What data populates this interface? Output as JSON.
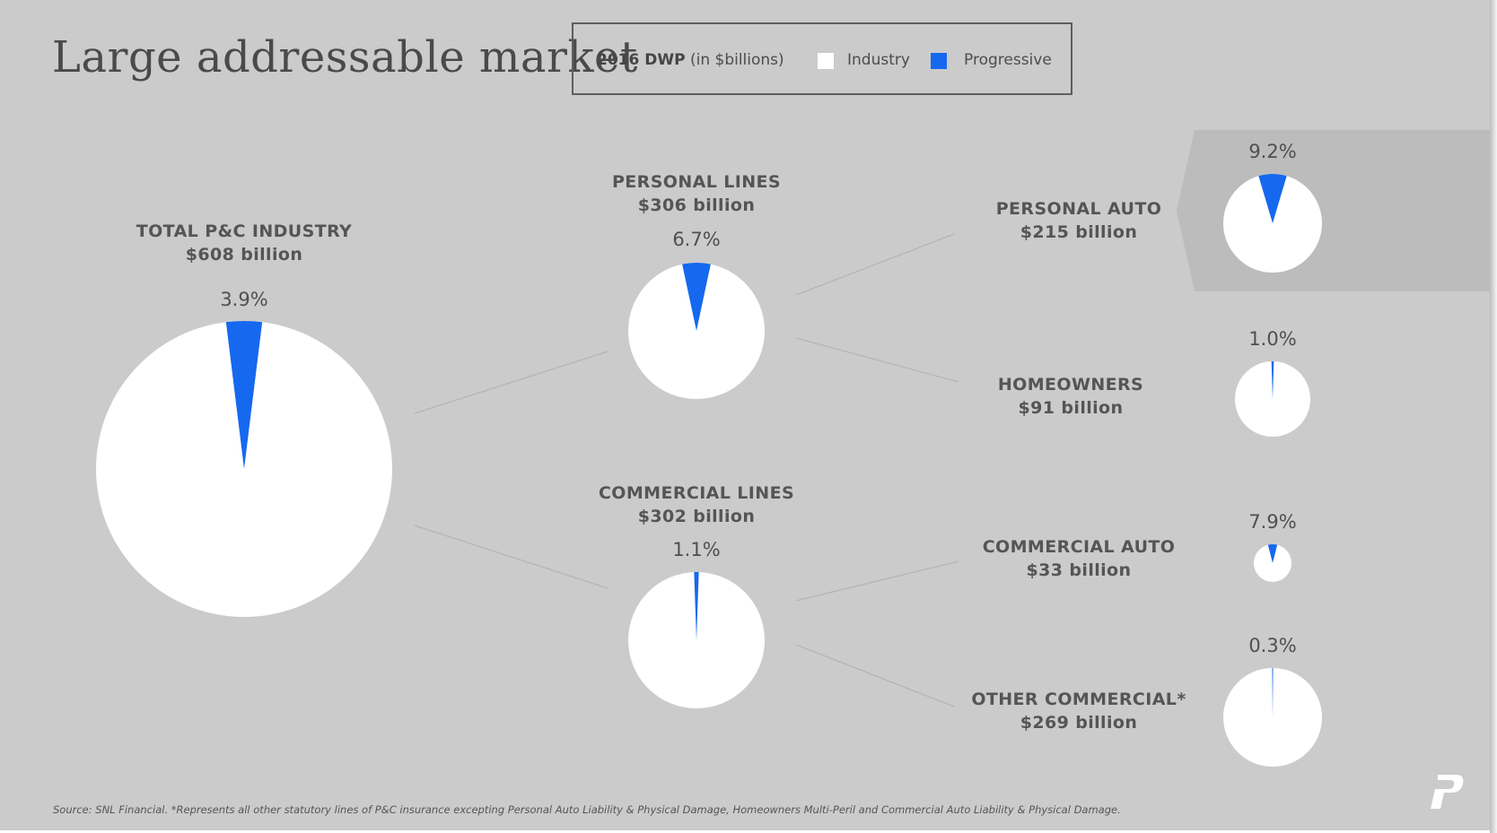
{
  "title": "Large addressable market",
  "legend": {
    "title_bold": "2016 DWP",
    "title_rest": "(in $billions)",
    "industry_label": "Industry",
    "progressive_label": "Progressive"
  },
  "colors": {
    "industry": "#ffffff",
    "progressive": "#1668ee",
    "background": "#cbcbcb",
    "highlight": "#bcbcbc",
    "text": "#555555"
  },
  "chart_data": {
    "type": "pie",
    "unit": "$ billions",
    "series_names": [
      "Industry",
      "Progressive"
    ],
    "pies": [
      {
        "id": "total",
        "label": "TOTAL P&C INDUSTRY",
        "value_text": "$608 billion",
        "value": 608,
        "progressive_share_text": "3.9%",
        "progressive_share": 3.9
      },
      {
        "id": "personal",
        "label": "PERSONAL LINES",
        "value_text": "$306 billion",
        "value": 306,
        "progressive_share_text": "6.7%",
        "progressive_share": 6.7
      },
      {
        "id": "commercial",
        "label": "COMMERCIAL LINES",
        "value_text": "$302 billion",
        "value": 302,
        "progressive_share_text": "1.1%",
        "progressive_share": 1.1
      },
      {
        "id": "personal_auto",
        "label": "PERSONAL AUTO",
        "value_text": "$215 billion",
        "value": 215,
        "progressive_share_text": "9.2%",
        "progressive_share": 9.2,
        "highlighted": true
      },
      {
        "id": "homeowners",
        "label": "HOMEOWNERS",
        "value_text": "$91 billion",
        "value": 91,
        "progressive_share_text": "1.0%",
        "progressive_share": 1.0
      },
      {
        "id": "commercial_auto",
        "label": "COMMERCIAL AUTO",
        "value_text": "$33 billion",
        "value": 33,
        "progressive_share_text": "7.9%",
        "progressive_share": 7.9
      },
      {
        "id": "other_commercial",
        "label": "OTHER COMMERCIAL*",
        "value_text": "$269 billion",
        "value": 269,
        "progressive_share_text": "0.3%",
        "progressive_share": 0.3
      }
    ],
    "hierarchy": [
      {
        "parent": "total",
        "child": "personal"
      },
      {
        "parent": "total",
        "child": "commercial"
      },
      {
        "parent": "personal",
        "child": "personal_auto"
      },
      {
        "parent": "personal",
        "child": "homeowners"
      },
      {
        "parent": "commercial",
        "child": "commercial_auto"
      },
      {
        "parent": "commercial",
        "child": "other_commercial"
      }
    ]
  },
  "footnote": "Source: SNL Financial. *Represents all other statutory lines of P&C insurance excepting Personal Auto Liability & Physical Damage, Homeowners Multi-Peril and Commercial Auto Liability & Physical Damage."
}
